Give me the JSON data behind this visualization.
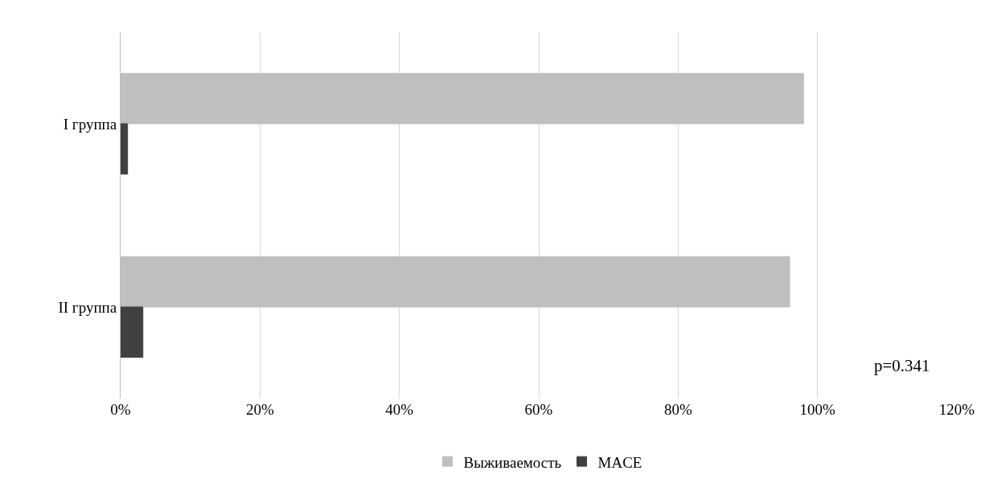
{
  "chart_data": {
    "type": "bar",
    "orientation": "horizontal",
    "categories": [
      "I группа",
      "II группа"
    ],
    "series": [
      {
        "name": "Выживаемость",
        "color": "#bfbfbf",
        "values": [
          0.98,
          0.96
        ]
      },
      {
        "name": "MACE",
        "color": "#404040",
        "values": [
          0.01,
          0.032
        ]
      }
    ],
    "xlim": [
      0,
      1.2
    ],
    "xticks": [
      {
        "value": 0,
        "label": "0%"
      },
      {
        "value": 0.2,
        "label": "20%"
      },
      {
        "value": 0.4,
        "label": "40%"
      },
      {
        "value": 0.6,
        "label": "60%"
      },
      {
        "value": 0.8,
        "label": "80%"
      },
      {
        "value": 1.0,
        "label": "100%"
      },
      {
        "value": 1.2,
        "label": "120%"
      }
    ],
    "grid": "x",
    "legend": "bottom",
    "annotations": [
      "p=0.341"
    ]
  }
}
